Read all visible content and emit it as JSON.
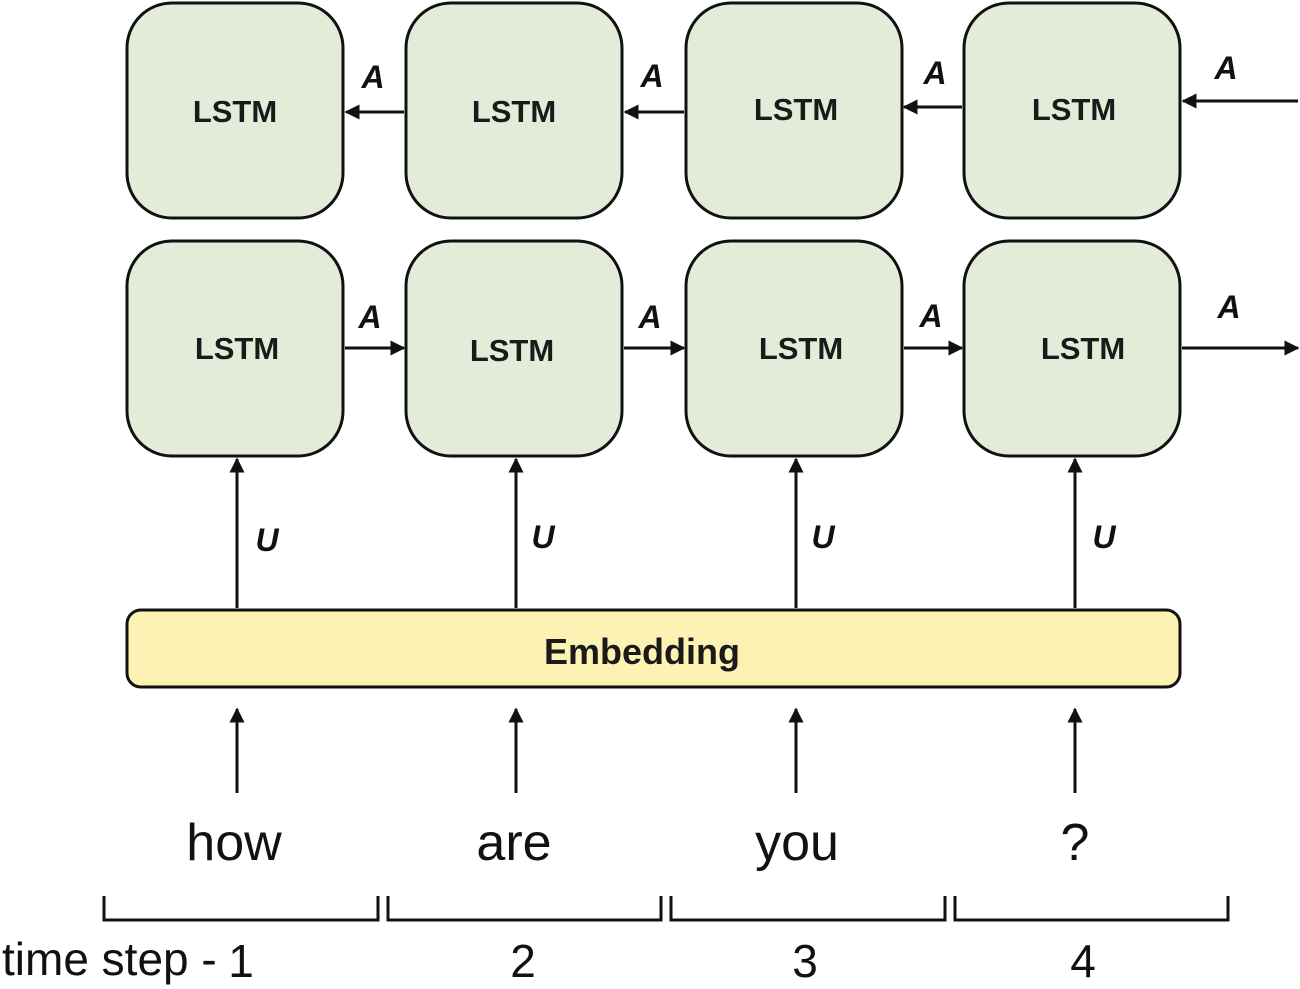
{
  "diagram": {
    "cell_label": "LSTM",
    "cell_fill": "#e2ecd8",
    "embedding_label": "Embedding",
    "embedding_fill": "#fbf2b4",
    "recurrent_weight_label": "A",
    "input_weight_label": "U",
    "words": [
      "how",
      "are",
      "you",
      "?"
    ],
    "time_step_label": "time step -",
    "time_steps": [
      "1",
      "2",
      "3",
      "4"
    ]
  }
}
